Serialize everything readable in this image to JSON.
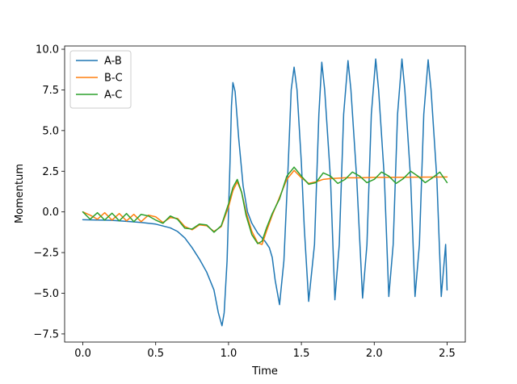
{
  "chart_data": {
    "type": "line",
    "title": "",
    "xlabel": "Time",
    "ylabel": "Momentum",
    "xlim": [
      -0.125,
      2.625
    ],
    "ylim": [
      -8.0,
      10.2
    ],
    "xticks": [
      0.0,
      0.5,
      1.0,
      1.5,
      2.0,
      2.5
    ],
    "xtick_labels": [
      "0.0",
      "0.5",
      "1.0",
      "1.5",
      "2.0",
      "2.5"
    ],
    "yticks": [
      -7.5,
      -5.0,
      -2.5,
      0.0,
      2.5,
      5.0,
      7.5,
      10.0
    ],
    "ytick_labels": [
      "−7.5",
      "−5.0",
      "−2.5",
      "0.0",
      "2.5",
      "5.0",
      "7.5",
      "10.0"
    ],
    "grid": false,
    "legend_position": "top-left",
    "series": [
      {
        "name": "A-B",
        "color": "#1f77b4",
        "points": [
          [
            0.0,
            -0.48
          ],
          [
            0.1,
            -0.5
          ],
          [
            0.2,
            -0.52
          ],
          [
            0.3,
            -0.58
          ],
          [
            0.4,
            -0.65
          ],
          [
            0.5,
            -0.75
          ],
          [
            0.6,
            -0.98
          ],
          [
            0.65,
            -1.2
          ],
          [
            0.7,
            -1.6
          ],
          [
            0.75,
            -2.2
          ],
          [
            0.8,
            -2.9
          ],
          [
            0.85,
            -3.7
          ],
          [
            0.9,
            -4.8
          ],
          [
            0.93,
            -6.2
          ],
          [
            0.955,
            -7.0
          ],
          [
            0.97,
            -6.2
          ],
          [
            0.99,
            -3.0
          ],
          [
            1.0,
            0.0
          ],
          [
            1.01,
            3.0
          ],
          [
            1.02,
            6.5
          ],
          [
            1.03,
            7.95
          ],
          [
            1.045,
            7.4
          ],
          [
            1.07,
            4.5
          ],
          [
            1.1,
            1.6
          ],
          [
            1.13,
            0.0
          ],
          [
            1.16,
            -0.7
          ],
          [
            1.2,
            -1.3
          ],
          [
            1.25,
            -1.8
          ],
          [
            1.28,
            -2.2
          ],
          [
            1.3,
            -2.8
          ],
          [
            1.32,
            -4.2
          ],
          [
            1.35,
            -5.7
          ],
          [
            1.38,
            -3.0
          ],
          [
            1.41,
            3.0
          ],
          [
            1.43,
            7.5
          ],
          [
            1.45,
            8.9
          ],
          [
            1.47,
            7.5
          ],
          [
            1.5,
            3.0
          ],
          [
            1.52,
            -1.0
          ],
          [
            1.55,
            -5.5
          ],
          [
            1.59,
            -2.0
          ],
          [
            1.62,
            6.0
          ],
          [
            1.64,
            9.2
          ],
          [
            1.66,
            7.5
          ],
          [
            1.7,
            2.0
          ],
          [
            1.73,
            -5.4
          ],
          [
            1.76,
            -2.0
          ],
          [
            1.79,
            6.0
          ],
          [
            1.82,
            9.3
          ],
          [
            1.84,
            7.5
          ],
          [
            1.88,
            2.0
          ],
          [
            1.92,
            -5.3
          ],
          [
            1.95,
            -2.0
          ],
          [
            1.98,
            6.0
          ],
          [
            2.01,
            9.4
          ],
          [
            2.03,
            7.5
          ],
          [
            2.07,
            2.0
          ],
          [
            2.1,
            -5.2
          ],
          [
            2.13,
            -2.0
          ],
          [
            2.16,
            6.0
          ],
          [
            2.19,
            9.4
          ],
          [
            2.21,
            7.5
          ],
          [
            2.25,
            2.0
          ],
          [
            2.28,
            -5.2
          ],
          [
            2.31,
            -2.0
          ],
          [
            2.34,
            6.0
          ],
          [
            2.37,
            9.35
          ],
          [
            2.39,
            7.5
          ],
          [
            2.43,
            2.0
          ],
          [
            2.46,
            -5.2
          ],
          [
            2.49,
            -2.0
          ],
          [
            2.5,
            -4.8
          ]
        ]
      },
      {
        "name": "B-C",
        "color": "#ff7f0e",
        "points": [
          [
            0.0,
            0.0
          ],
          [
            0.05,
            -0.2
          ],
          [
            0.1,
            -0.45
          ],
          [
            0.15,
            -0.05
          ],
          [
            0.2,
            -0.5
          ],
          [
            0.25,
            -0.1
          ],
          [
            0.3,
            -0.55
          ],
          [
            0.35,
            -0.15
          ],
          [
            0.4,
            -0.6
          ],
          [
            0.45,
            -0.2
          ],
          [
            0.5,
            -0.3
          ],
          [
            0.55,
            -0.65
          ],
          [
            0.6,
            -0.35
          ],
          [
            0.65,
            -0.4
          ],
          [
            0.7,
            -0.9
          ],
          [
            0.75,
            -1.1
          ],
          [
            0.8,
            -0.8
          ],
          [
            0.85,
            -0.85
          ],
          [
            0.9,
            -1.2
          ],
          [
            0.95,
            -0.9
          ],
          [
            1.0,
            0.3
          ],
          [
            1.03,
            1.3
          ],
          [
            1.06,
            1.85
          ],
          [
            1.09,
            1.2
          ],
          [
            1.12,
            0.0
          ],
          [
            1.16,
            -1.2
          ],
          [
            1.2,
            -1.9
          ],
          [
            1.23,
            -2.0
          ],
          [
            1.26,
            -1.2
          ],
          [
            1.3,
            -0.2
          ],
          [
            1.35,
            0.9
          ],
          [
            1.4,
            2.0
          ],
          [
            1.45,
            2.55
          ],
          [
            1.5,
            2.1
          ],
          [
            1.55,
            1.75
          ],
          [
            1.6,
            1.85
          ],
          [
            1.65,
            2.0
          ],
          [
            1.7,
            2.05
          ],
          [
            1.8,
            2.1
          ],
          [
            1.9,
            2.1
          ],
          [
            2.0,
            2.12
          ],
          [
            2.2,
            2.13
          ],
          [
            2.4,
            2.14
          ],
          [
            2.5,
            2.15
          ]
        ]
      },
      {
        "name": "A-C",
        "color": "#2ca02c",
        "points": [
          [
            0.0,
            0.0
          ],
          [
            0.05,
            -0.45
          ],
          [
            0.1,
            -0.05
          ],
          [
            0.15,
            -0.5
          ],
          [
            0.2,
            -0.08
          ],
          [
            0.25,
            -0.55
          ],
          [
            0.3,
            -0.1
          ],
          [
            0.35,
            -0.6
          ],
          [
            0.4,
            -0.15
          ],
          [
            0.45,
            -0.25
          ],
          [
            0.5,
            -0.5
          ],
          [
            0.55,
            -0.7
          ],
          [
            0.6,
            -0.25
          ],
          [
            0.65,
            -0.45
          ],
          [
            0.7,
            -1.0
          ],
          [
            0.75,
            -1.05
          ],
          [
            0.8,
            -0.75
          ],
          [
            0.85,
            -0.8
          ],
          [
            0.9,
            -1.25
          ],
          [
            0.95,
            -0.85
          ],
          [
            1.0,
            0.5
          ],
          [
            1.03,
            1.5
          ],
          [
            1.06,
            2.0
          ],
          [
            1.09,
            1.2
          ],
          [
            1.12,
            -0.2
          ],
          [
            1.16,
            -1.4
          ],
          [
            1.2,
            -1.95
          ],
          [
            1.23,
            -1.8
          ],
          [
            1.26,
            -1.0
          ],
          [
            1.3,
            -0.1
          ],
          [
            1.35,
            0.8
          ],
          [
            1.4,
            2.2
          ],
          [
            1.45,
            2.75
          ],
          [
            1.5,
            2.2
          ],
          [
            1.55,
            1.7
          ],
          [
            1.6,
            1.8
          ],
          [
            1.65,
            2.4
          ],
          [
            1.7,
            2.2
          ],
          [
            1.75,
            1.75
          ],
          [
            1.8,
            2.0
          ],
          [
            1.85,
            2.45
          ],
          [
            1.9,
            2.2
          ],
          [
            1.95,
            1.8
          ],
          [
            2.0,
            2.0
          ],
          [
            2.05,
            2.45
          ],
          [
            2.1,
            2.2
          ],
          [
            2.15,
            1.75
          ],
          [
            2.2,
            2.05
          ],
          [
            2.25,
            2.5
          ],
          [
            2.3,
            2.2
          ],
          [
            2.35,
            1.8
          ],
          [
            2.4,
            2.1
          ],
          [
            2.45,
            2.45
          ],
          [
            2.5,
            1.8
          ]
        ]
      }
    ]
  }
}
